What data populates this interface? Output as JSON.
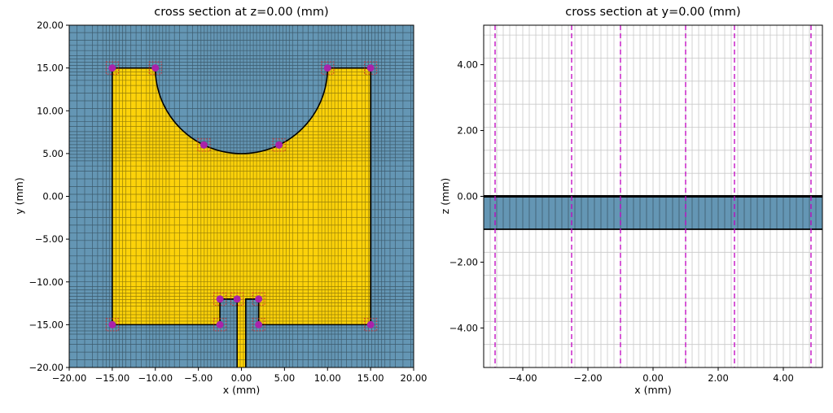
{
  "colors": {
    "figure_bg": "#ffffff",
    "substrate_blue": "#6496b4",
    "metal_yellow": "#fcd20a",
    "mesh_line": "rgba(0,0,0,0.40)",
    "grid_gray": "#c9c9c9",
    "marker_purple": "#aa22aa",
    "marker_box_red": "#d62728",
    "dashed_magenta": "#c000c0",
    "outline_black": "#000000"
  },
  "chart_data": [
    {
      "type": "cross_section_mesh",
      "id": "xy",
      "title": "cross section at z=0.00 (mm)",
      "xlabel": "x (mm)",
      "ylabel": "y (mm)",
      "xlim": [
        -20,
        20
      ],
      "ylim": [
        -20,
        20
      ],
      "xticks": [
        -20,
        -15,
        -10,
        -5,
        0,
        5,
        10,
        15,
        20
      ],
      "yticks": [
        -20,
        -15,
        -10,
        -5,
        0,
        5,
        10,
        15,
        20
      ],
      "tick_decimals": 2,
      "background_region": "substrate",
      "metal_patch": {
        "pre_arc": [
          [
            -15,
            -15
          ],
          [
            -15,
            15
          ],
          [
            -10,
            15
          ]
        ],
        "arc": {
          "cx": 0,
          "cy": 15,
          "r": 10,
          "to": [
            10,
            15
          ]
        },
        "post_arc": [
          [
            15,
            15
          ],
          [
            15,
            -15
          ],
          [
            2,
            -15
          ],
          [
            2,
            -12
          ],
          [
            0.5,
            -12
          ],
          [
            0.5,
            -20.6
          ],
          [
            -0.5,
            -20.6
          ],
          [
            -0.5,
            -12
          ],
          [
            -2.5,
            -12
          ],
          [
            -2.5,
            -15
          ]
        ]
      },
      "vertex_markers": [
        [
          -15,
          15
        ],
        [
          -10,
          15
        ],
        [
          10,
          15
        ],
        [
          15,
          15
        ],
        [
          -4.36,
          6
        ],
        [
          4.36,
          6
        ],
        [
          -2.5,
          -12
        ],
        [
          -0.5,
          -12
        ],
        [
          2,
          -12
        ],
        [
          -2.5,
          -15
        ],
        [
          2,
          -15
        ],
        [
          -15,
          -15
        ],
        [
          15,
          -15
        ]
      ],
      "mesh": {
        "x_keys": [
          -15,
          -10,
          -4.36,
          -2.5,
          -0.5,
          0.5,
          2,
          4.36,
          10,
          15
        ],
        "y_keys": [
          -15,
          -12,
          5,
          6,
          15
        ],
        "fine_step": 0.38,
        "mid_step": 0.6,
        "coarse_step": 0.9,
        "fine_dist": 1.3,
        "mid_dist": 2.8
      }
    },
    {
      "type": "cross_section_mesh",
      "id": "xz",
      "title": "cross section at y=0.00 (mm)",
      "xlabel": "x (mm)",
      "ylabel": "z (mm)",
      "xlim": [
        -5.2,
        5.2
      ],
      "ylim": [
        -5.2,
        5.2
      ],
      "xticks": [
        -4,
        -2,
        0,
        2,
        4
      ],
      "yticks": [
        -4,
        -2,
        0,
        2,
        4
      ],
      "tick_decimals": 2,
      "substrate_band": {
        "z_top": 0,
        "z_bottom": -1
      },
      "metal_line_z": 0,
      "dashed_lines_x": [
        -4.85,
        -2.5,
        -1,
        1,
        2.5,
        4.85
      ],
      "grid": {
        "x_step": 0.2,
        "z_step_outside": 0.7,
        "z_step_inside": 0.25
      }
    }
  ]
}
